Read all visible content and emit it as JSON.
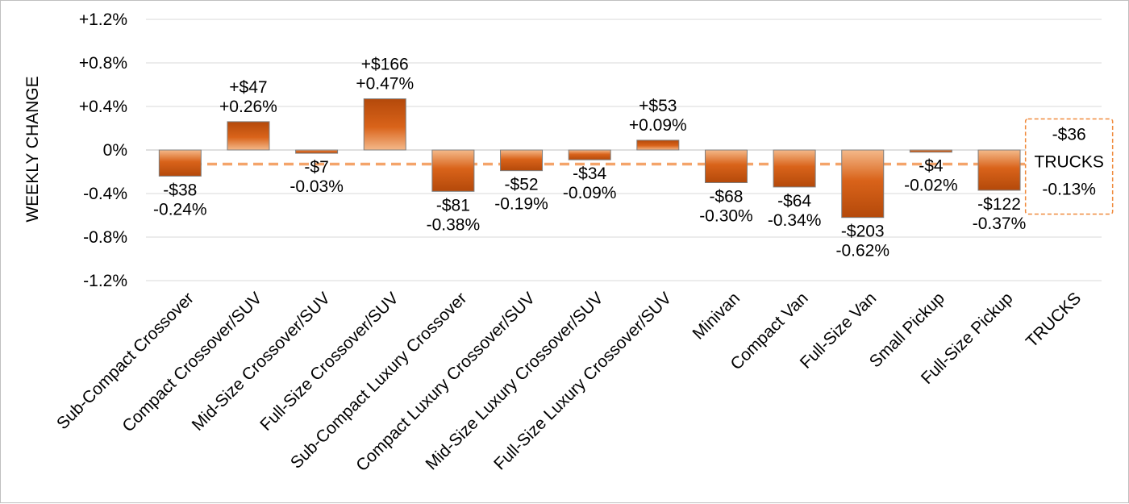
{
  "chart_data": {
    "type": "bar",
    "ylabel": "WEEKLY CHANGE",
    "xlabel": "",
    "ylim": [
      -1.2,
      1.2
    ],
    "yticks": [
      1.2,
      0.8,
      0.4,
      0,
      -0.4,
      -0.8,
      -1.2
    ],
    "ytick_labels": [
      "+1.2%",
      "+0.8%",
      "+0.4%",
      "0%",
      "-0.4%",
      "-0.8%",
      "-1.2%"
    ],
    "grid": true,
    "categories": [
      "Sub-Compact Crossover",
      "Compact Crossover/SUV",
      "Mid-Size Crossover/SUV",
      "Full-Size Crossover/SUV",
      "Sub-Compact Luxury Crossover",
      "Compact Luxury Crossover/SUV",
      "Mid-Size Luxury Crossover/SUV",
      "Full-Size Luxury Crossover/SUV",
      "Minivan",
      "Compact Van",
      "Full-Size Van",
      "Small Pickup",
      "Full-Size Pickup",
      "TRUCKS"
    ],
    "values": [
      -0.24,
      0.26,
      -0.03,
      0.47,
      -0.38,
      -0.19,
      -0.09,
      0.09,
      -0.3,
      -0.34,
      -0.62,
      -0.02,
      -0.37,
      null
    ],
    "dollar_labels": [
      "-$38",
      "+$47",
      "-$7",
      "+$166",
      "-$81",
      "-$52",
      "-$34",
      "+$53",
      "-$68",
      "-$64",
      "-$203",
      "-$4",
      "-$122",
      null
    ],
    "percent_labels": [
      "-0.24%",
      "+0.26%",
      "-0.03%",
      "+0.47%",
      "-0.38%",
      "-0.19%",
      "-0.09%",
      "+0.09%",
      "-0.30%",
      "-0.34%",
      "-0.62%",
      "-0.02%",
      "-0.37%",
      null
    ],
    "average": {
      "value": -0.13,
      "label_lines": [
        "-$36",
        "TRUCKS",
        "-0.13%"
      ]
    },
    "colors": {
      "bar_dark": "#b4490a",
      "bar_mid": "#d9631a",
      "bar_light": "#f4b98a",
      "bar_outline": "#7f7f7f",
      "average_line": "#f4a46a",
      "average_box": "#f08a3c",
      "grid": "#d9d9d9",
      "axis": "#bfbfbf"
    }
  }
}
